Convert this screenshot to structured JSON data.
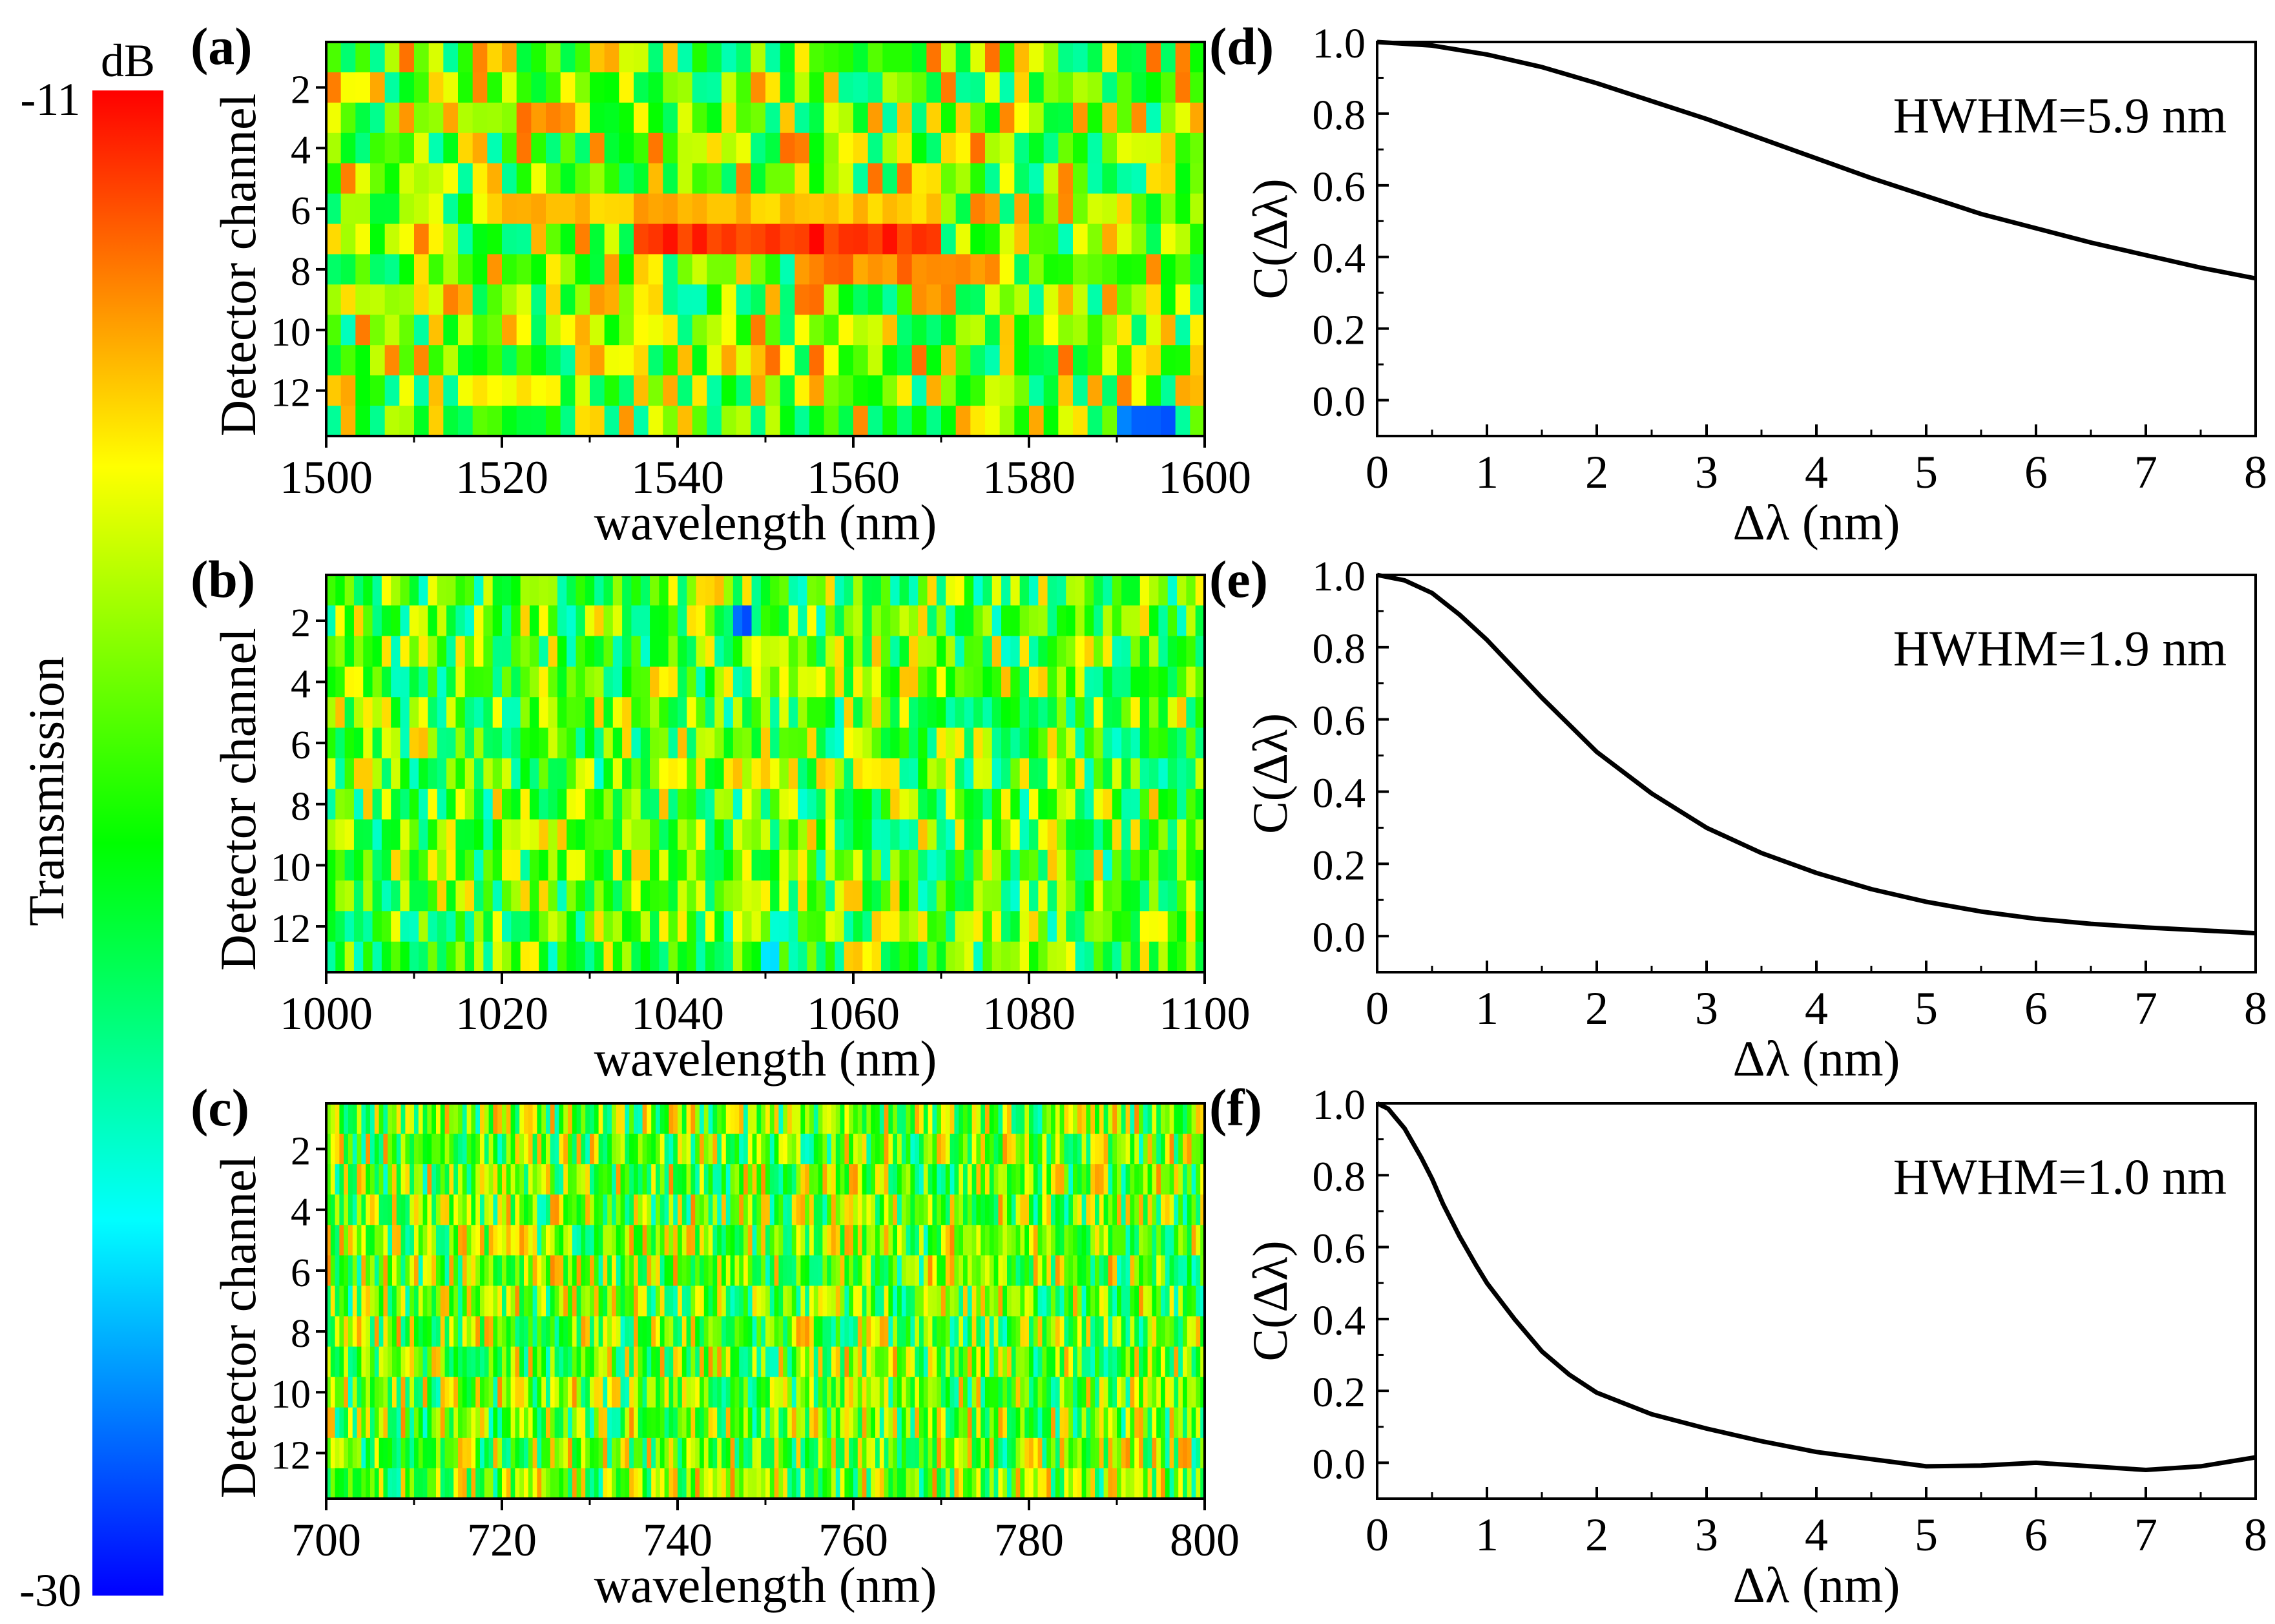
{
  "colorbar": {
    "unit": "dB",
    "max_label": "-11",
    "min_label": "-30",
    "title": "Transmission",
    "min": -30,
    "max": -11,
    "colormap": [
      "#0000ff",
      "#00ffff",
      "#00ff00",
      "#ffff00",
      "#ff0000"
    ]
  },
  "chart_data": [
    {
      "type": "heatmap",
      "panel_label": "(a)",
      "xlabel": "wavelength (nm)",
      "ylabel": "Detector channel",
      "xlim": [
        1500,
        1600
      ],
      "xticks": [
        "1500",
        "1520",
        "1540",
        "1560",
        "1580",
        "1600"
      ],
      "yticks": [
        "2",
        "4",
        "6",
        "8",
        "10",
        "12"
      ],
      "channels": 13,
      "value_range_db": [
        -30,
        -11
      ],
      "channel_features": [
        {
          "channel": 6,
          "start_nm": 1520,
          "end_nm": 1570,
          "level_db": -14.5
        },
        {
          "channel": 7,
          "start_nm": 1535,
          "end_nm": 1570,
          "level_db": -11.8
        },
        {
          "channel": 8,
          "start_nm": 1555,
          "end_nm": 1575,
          "level_db": -13.5
        },
        {
          "channel": 12,
          "start_nm": 1515,
          "end_nm": 1527,
          "level_db": -15.5
        },
        {
          "channel": 13,
          "start_nm": 1590,
          "end_nm": 1596,
          "level_db": -28
        }
      ]
    },
    {
      "type": "heatmap",
      "panel_label": "(b)",
      "xlabel": "wavelength (nm)",
      "ylabel": "Detector channel",
      "xlim": [
        1000,
        1100
      ],
      "xticks": [
        "1000",
        "1020",
        "1040",
        "1060",
        "1080",
        "1100"
      ],
      "yticks": [
        "2",
        "4",
        "6",
        "8",
        "10",
        "12"
      ],
      "channels": 13,
      "value_range_db": [
        -30,
        -11
      ],
      "channel_features": [
        {
          "channel": 2,
          "start_nm": 1046,
          "end_nm": 1048,
          "level_db": -28
        },
        {
          "channel": 7,
          "start_nm": 1048,
          "end_nm": 1051,
          "level_db": -15
        },
        {
          "channel": 13,
          "start_nm": 1050,
          "end_nm": 1052,
          "level_db": -26
        }
      ]
    },
    {
      "type": "heatmap",
      "panel_label": "(c)",
      "xlabel": "wavelength (nm)",
      "ylabel": "Detector channel",
      "xlim": [
        700,
        800
      ],
      "xticks": [
        "700",
        "720",
        "740",
        "760",
        "780",
        "800"
      ],
      "yticks": [
        "2",
        "4",
        "6",
        "8",
        "10",
        "12"
      ],
      "channels": 13,
      "value_range_db": [
        -30,
        -11
      ],
      "channel_features": []
    },
    {
      "type": "line",
      "panel_label": "(d)",
      "annotation": "HWHM=5.9 nm",
      "xlabel": "Δλ (nm)",
      "ylabel": "C(Δλ)",
      "xlim": [
        0,
        8
      ],
      "ylim": [
        -0.1,
        1.0
      ],
      "xticks": [
        "0",
        "1",
        "2",
        "3",
        "4",
        "5",
        "6",
        "7",
        "8"
      ],
      "yticks": [
        "1.0",
        "0.8",
        "0.6",
        "0.4",
        "0.2",
        "0.0"
      ],
      "series": [
        {
          "x": [
            0,
            0.5,
            1,
            1.5,
            2,
            2.5,
            3,
            3.5,
            4,
            4.5,
            5,
            5.5,
            6,
            6.5,
            7,
            7.5,
            8
          ],
          "y": [
            1.0,
            0.99,
            0.965,
            0.93,
            0.885,
            0.835,
            0.785,
            0.73,
            0.675,
            0.62,
            0.57,
            0.52,
            0.48,
            0.44,
            0.405,
            0.37,
            0.34
          ]
        }
      ]
    },
    {
      "type": "line",
      "panel_label": "(e)",
      "annotation": "HWHM=1.9 nm",
      "xlabel": "Δλ (nm)",
      "ylabel": "C(Δλ)",
      "xlim": [
        0,
        8
      ],
      "ylim": [
        -0.1,
        1.0
      ],
      "xticks": [
        "0",
        "1",
        "2",
        "3",
        "4",
        "5",
        "6",
        "7",
        "8"
      ],
      "yticks": [
        "1.0",
        "0.8",
        "0.6",
        "0.4",
        "0.2",
        "0.0"
      ],
      "series": [
        {
          "x": [
            0,
            0.25,
            0.5,
            0.75,
            1,
            1.25,
            1.5,
            1.75,
            2,
            2.5,
            3,
            3.5,
            4,
            4.5,
            5,
            5.5,
            6,
            6.5,
            7,
            7.5,
            8
          ],
          "y": [
            1.0,
            0.985,
            0.95,
            0.89,
            0.82,
            0.74,
            0.66,
            0.585,
            0.51,
            0.395,
            0.3,
            0.23,
            0.175,
            0.13,
            0.095,
            0.068,
            0.048,
            0.034,
            0.024,
            0.016,
            0.008
          ]
        }
      ]
    },
    {
      "type": "line",
      "panel_label": "(f)",
      "annotation": "HWHM=1.0 nm",
      "xlabel": "Δλ (nm)",
      "ylabel": "C(Δλ)",
      "xlim": [
        0,
        8
      ],
      "ylim": [
        -0.1,
        1.0
      ],
      "xticks": [
        "0",
        "1",
        "2",
        "3",
        "4",
        "5",
        "6",
        "7",
        "8"
      ],
      "yticks": [
        "1.0",
        "0.8",
        "0.6",
        "0.4",
        "0.2",
        "0.0"
      ],
      "series": [
        {
          "x": [
            0,
            0.1,
            0.25,
            0.4,
            0.5,
            0.6,
            0.75,
            0.9,
            1,
            1.25,
            1.5,
            1.75,
            2,
            2.5,
            3,
            3.5,
            4,
            4.5,
            5,
            5.5,
            6,
            6.5,
            7,
            7.5,
            8
          ],
          "y": [
            1.0,
            0.985,
            0.93,
            0.85,
            0.79,
            0.72,
            0.63,
            0.55,
            0.5,
            0.4,
            0.31,
            0.245,
            0.195,
            0.135,
            0.095,
            0.06,
            0.03,
            0.01,
            -0.01,
            -0.008,
            0.0,
            -0.01,
            -0.02,
            -0.01,
            0.015
          ]
        }
      ]
    }
  ]
}
